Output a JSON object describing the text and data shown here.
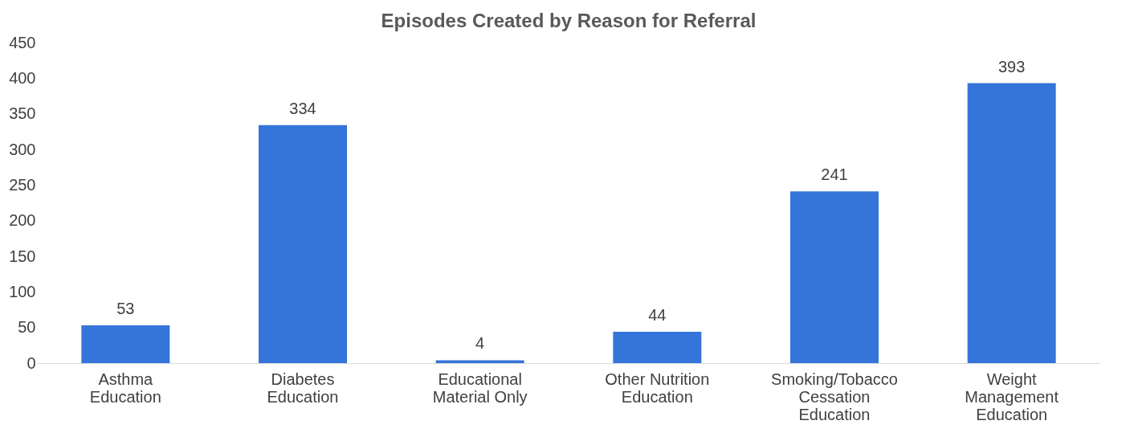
{
  "chart_data": {
    "type": "bar",
    "title": "Episodes Created by Reason for Referral",
    "categories": [
      "Asthma\nEducation",
      "Diabetes\nEducation",
      "Educational\nMaterial Only",
      "Other Nutrition\nEducation",
      "Smoking/Tobacco\nCessation\nEducation",
      "Weight\nManagement\nEducation"
    ],
    "values": [
      53,
      334,
      4,
      44,
      241,
      393
    ],
    "color": "#3574d9",
    "ylim": [
      0,
      450
    ],
    "yticks": [
      0,
      50,
      100,
      150,
      200,
      250,
      300,
      350,
      400,
      450
    ],
    "grid": false,
    "data_labels": true
  }
}
